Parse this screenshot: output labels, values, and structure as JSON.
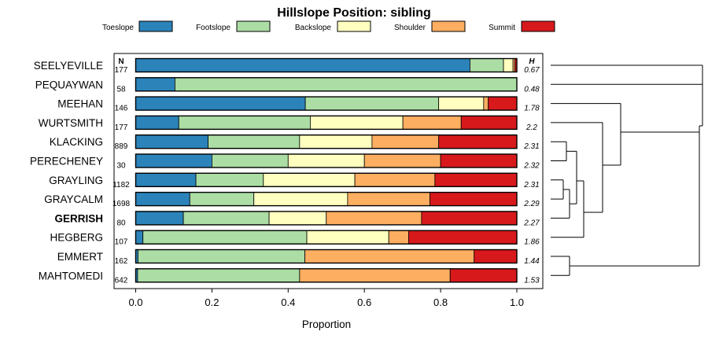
{
  "chart_data": {
    "type": "bar",
    "stacked": true,
    "orientation": "horizontal",
    "title": "Hillslope Position: sibling",
    "xlabel": "Proportion",
    "xlim": [
      0,
      1
    ],
    "x_ticks": [
      "0.0",
      "0.2",
      "0.4",
      "0.6",
      "0.8",
      "1.0"
    ],
    "n_header": "N",
    "h_header": "H",
    "legend_placement": "top",
    "legend": [
      {
        "name": "Toeslope",
        "color": "#2B83BA"
      },
      {
        "name": "Footslope",
        "color": "#ABDDA4"
      },
      {
        "name": "Backslope",
        "color": "#FFFFBF"
      },
      {
        "name": "Shoulder",
        "color": "#FDAE61"
      },
      {
        "name": "Summit",
        "color": "#D7191C"
      }
    ],
    "rows": [
      {
        "name": "SEELYEVILLE",
        "n": "177",
        "h": "0.67",
        "bold": false,
        "values": [
          0.877,
          0.088,
          0.025,
          0.005,
          0.005
        ]
      },
      {
        "name": "PEQUAYWAN",
        "n": "58",
        "h": "0.48",
        "bold": false,
        "values": [
          0.103,
          0.897,
          0,
          0,
          0
        ]
      },
      {
        "name": "MEEHAN",
        "n": "146",
        "h": "1.78",
        "bold": false,
        "values": [
          0.445,
          0.35,
          0.118,
          0.012,
          0.075
        ]
      },
      {
        "name": "WURTSMITH",
        "n": "177",
        "h": "2.2",
        "bold": false,
        "values": [
          0.113,
          0.345,
          0.243,
          0.153,
          0.146
        ]
      },
      {
        "name": "KLACKING",
        "n": "889",
        "h": "2.31",
        "bold": false,
        "values": [
          0.19,
          0.24,
          0.19,
          0.175,
          0.205
        ]
      },
      {
        "name": "PERECHENEY",
        "n": "30",
        "h": "2.32",
        "bold": false,
        "values": [
          0.2,
          0.2,
          0.2,
          0.2,
          0.2
        ]
      },
      {
        "name": "GRAYLING",
        "n": "1182",
        "h": "2.31",
        "bold": false,
        "values": [
          0.158,
          0.177,
          0.24,
          0.21,
          0.215
        ]
      },
      {
        "name": "GRAYCALM",
        "n": "1698",
        "h": "2.29",
        "bold": false,
        "values": [
          0.142,
          0.168,
          0.246,
          0.216,
          0.228
        ]
      },
      {
        "name": "GERRISH",
        "n": "80",
        "h": "2.27",
        "bold": true,
        "values": [
          0.125,
          0.225,
          0.15,
          0.25,
          0.25
        ]
      },
      {
        "name": "HEGBERG",
        "n": "107",
        "h": "1.86",
        "bold": false,
        "values": [
          0.019,
          0.43,
          0.215,
          0.052,
          0.284
        ]
      },
      {
        "name": "EMMERT",
        "n": "162",
        "h": "1.44",
        "bold": false,
        "values": [
          0.006,
          0.438,
          0,
          0.444,
          0.112
        ]
      },
      {
        "name": "MAHTOMEDI",
        "n": "642",
        "h": "1.53",
        "bold": false,
        "values": [
          0.005,
          0.425,
          0,
          0.395,
          0.175
        ]
      }
    ]
  }
}
